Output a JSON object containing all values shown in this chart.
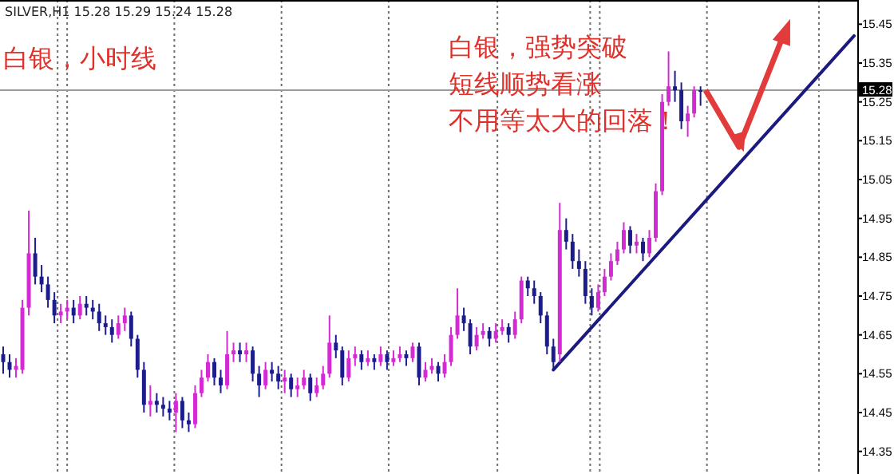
{
  "chart_data": {
    "type": "candlestick",
    "title": "白银，小时线",
    "subtitle": "SILVER,H1  15.28 15.29 15.24 15.28",
    "annotations": [
      "白银，强势突破",
      "短线顺势看涨",
      "不用等太大的回落！"
    ],
    "categories": [
      null,
      null,
      null,
      null,
      null,
      null,
      null,
      null,
      null,
      null,
      null,
      null,
      null,
      null,
      null,
      null,
      null,
      null,
      null,
      null,
      null,
      null,
      null,
      null,
      null,
      null,
      null,
      null,
      null,
      null,
      null,
      null,
      null,
      null,
      null,
      null,
      null,
      null,
      null,
      null,
      null,
      null,
      null,
      null,
      null,
      null,
      null,
      null,
      null,
      null,
      null,
      null,
      null,
      null,
      null,
      null,
      null,
      null,
      null,
      null,
      null,
      null,
      null,
      null,
      null,
      null,
      null,
      null,
      null,
      null,
      null,
      null,
      null,
      null,
      null,
      null,
      null,
      null,
      null,
      null,
      null,
      null,
      null,
      null,
      null,
      null,
      null,
      null,
      null,
      null,
      null,
      null,
      null,
      null,
      null,
      null,
      null,
      null,
      null,
      null,
      null,
      null,
      null,
      null,
      null,
      null,
      null,
      null,
      null,
      null,
      null,
      null,
      null,
      null,
      null,
      null,
      null,
      null,
      null,
      null,
      null,
      null,
      null,
      null,
      null,
      null,
      null,
      null,
      null,
      null,
      null,
      null,
      null,
      null
    ],
    "ohlc": [
      [
        14.6,
        14.62,
        14.55,
        14.58
      ],
      [
        14.58,
        14.6,
        14.54,
        14.56
      ],
      [
        14.56,
        14.59,
        14.54,
        14.57
      ],
      [
        14.56,
        14.74,
        14.55,
        14.72
      ],
      [
        14.72,
        14.97,
        14.7,
        14.86
      ],
      [
        14.86,
        14.9,
        14.78,
        14.8
      ],
      [
        14.8,
        14.83,
        14.76,
        14.78
      ],
      [
        14.78,
        14.8,
        14.72,
        14.74
      ],
      [
        14.74,
        14.76,
        14.68,
        14.7
      ],
      [
        14.7,
        14.73,
        14.68,
        14.71
      ],
      [
        14.71,
        14.74,
        14.69,
        14.72
      ],
      [
        14.72,
        14.74,
        14.68,
        14.7
      ],
      [
        14.7,
        14.75,
        14.69,
        14.73
      ],
      [
        14.73,
        14.75,
        14.7,
        14.72
      ],
      [
        14.72,
        14.74,
        14.69,
        14.71
      ],
      [
        14.71,
        14.73,
        14.66,
        14.68
      ],
      [
        14.68,
        14.7,
        14.65,
        14.67
      ],
      [
        14.67,
        14.69,
        14.63,
        14.65
      ],
      [
        14.65,
        14.7,
        14.64,
        14.68
      ],
      [
        14.68,
        14.72,
        14.66,
        14.7
      ],
      [
        14.7,
        14.71,
        14.62,
        14.64
      ],
      [
        14.64,
        14.65,
        14.54,
        14.56
      ],
      [
        14.56,
        14.58,
        14.45,
        14.47
      ],
      [
        14.47,
        14.52,
        14.44,
        14.48
      ],
      [
        14.48,
        14.5,
        14.45,
        14.47
      ],
      [
        14.47,
        14.49,
        14.44,
        14.46
      ],
      [
        14.46,
        14.48,
        14.43,
        14.45
      ],
      [
        14.45,
        14.5,
        14.4,
        14.48
      ],
      [
        14.48,
        14.49,
        14.41,
        14.43
      ],
      [
        14.43,
        14.45,
        14.4,
        14.42
      ],
      [
        14.42,
        14.52,
        14.41,
        14.5
      ],
      [
        14.5,
        14.56,
        14.49,
        14.54
      ],
      [
        14.54,
        14.6,
        14.53,
        14.58
      ],
      [
        14.58,
        14.59,
        14.52,
        14.54
      ],
      [
        14.54,
        14.56,
        14.5,
        14.52
      ],
      [
        14.52,
        14.66,
        14.51,
        14.6
      ],
      [
        14.6,
        14.63,
        14.58,
        14.61
      ],
      [
        14.61,
        14.63,
        14.58,
        14.6
      ],
      [
        14.6,
        14.63,
        14.58,
        14.61
      ],
      [
        14.61,
        14.62,
        14.53,
        14.55
      ],
      [
        14.55,
        14.57,
        14.49,
        14.52
      ],
      [
        14.52,
        14.58,
        14.51,
        14.56
      ],
      [
        14.56,
        14.58,
        14.53,
        14.55
      ],
      [
        14.55,
        14.57,
        14.51,
        14.53
      ],
      [
        14.53,
        14.56,
        14.5,
        14.54
      ],
      [
        14.54,
        14.55,
        14.49,
        14.51
      ],
      [
        14.51,
        14.54,
        14.49,
        14.52
      ],
      [
        14.52,
        14.56,
        14.51,
        14.54
      ],
      [
        14.54,
        14.55,
        14.48,
        14.5
      ],
      [
        14.5,
        14.54,
        14.49,
        14.52
      ],
      [
        14.52,
        14.57,
        14.51,
        14.55
      ],
      [
        14.55,
        14.7,
        14.54,
        14.63
      ],
      [
        14.63,
        14.65,
        14.59,
        14.61
      ],
      [
        14.61,
        14.62,
        14.52,
        14.54
      ],
      [
        14.54,
        14.61,
        14.53,
        14.59
      ],
      [
        14.59,
        14.62,
        14.57,
        14.6
      ],
      [
        14.6,
        14.61,
        14.56,
        14.58
      ],
      [
        14.58,
        14.61,
        14.57,
        14.59
      ],
      [
        14.59,
        14.6,
        14.56,
        14.58
      ],
      [
        14.58,
        14.62,
        14.57,
        14.6
      ],
      [
        14.6,
        14.61,
        14.56,
        14.58
      ],
      [
        14.58,
        14.61,
        14.57,
        14.59
      ],
      [
        14.59,
        14.62,
        14.58,
        14.6
      ],
      [
        14.6,
        14.61,
        14.57,
        14.59
      ],
      [
        14.59,
        14.63,
        14.58,
        14.62
      ],
      [
        14.62,
        14.63,
        14.52,
        14.54
      ],
      [
        14.54,
        14.58,
        14.53,
        14.56
      ],
      [
        14.56,
        14.59,
        14.55,
        14.57
      ],
      [
        14.57,
        14.58,
        14.53,
        14.55
      ],
      [
        14.55,
        14.6,
        14.54,
        14.58
      ],
      [
        14.58,
        14.67,
        14.57,
        14.65
      ],
      [
        14.65,
        14.77,
        14.64,
        14.7
      ],
      [
        14.7,
        14.72,
        14.66,
        14.68
      ],
      [
        14.68,
        14.69,
        14.6,
        14.62
      ],
      [
        14.62,
        14.67,
        14.61,
        14.65
      ],
      [
        14.65,
        14.68,
        14.64,
        14.66
      ],
      [
        14.66,
        14.67,
        14.62,
        14.64
      ],
      [
        14.64,
        14.68,
        14.63,
        14.66
      ],
      [
        14.66,
        14.69,
        14.65,
        14.67
      ],
      [
        14.67,
        14.68,
        14.63,
        14.65
      ],
      [
        14.65,
        14.71,
        14.64,
        14.69
      ],
      [
        14.69,
        14.8,
        14.68,
        14.79
      ],
      [
        14.79,
        14.8,
        14.75,
        14.77
      ],
      [
        14.77,
        14.79,
        14.73,
        14.75
      ],
      [
        14.75,
        14.76,
        14.68,
        14.7
      ],
      [
        14.7,
        14.71,
        14.6,
        14.62
      ],
      [
        14.62,
        14.64,
        14.56,
        14.58
      ],
      [
        14.6,
        14.99,
        14.58,
        14.92
      ],
      [
        14.92,
        14.95,
        14.87,
        14.89
      ],
      [
        14.89,
        14.91,
        14.82,
        14.84
      ],
      [
        14.84,
        14.87,
        14.8,
        14.82
      ],
      [
        14.82,
        14.84,
        14.73,
        14.75
      ],
      [
        14.75,
        14.77,
        14.7,
        14.72
      ],
      [
        14.72,
        14.78,
        14.71,
        14.76
      ],
      [
        14.76,
        14.82,
        14.75,
        14.8
      ],
      [
        14.8,
        14.86,
        14.79,
        14.84
      ],
      [
        14.84,
        14.89,
        14.83,
        14.87
      ],
      [
        14.87,
        14.94,
        14.86,
        14.92
      ],
      [
        14.92,
        14.93,
        14.86,
        14.88
      ],
      [
        14.88,
        14.91,
        14.86,
        14.89
      ],
      [
        14.89,
        14.9,
        14.84,
        14.86
      ],
      [
        14.86,
        14.92,
        14.85,
        14.9
      ],
      [
        14.9,
        15.04,
        14.89,
        15.02
      ],
      [
        15.02,
        15.27,
        15.01,
        15.25
      ],
      [
        15.25,
        15.38,
        15.24,
        15.29
      ],
      [
        15.29,
        15.33,
        15.25,
        15.28
      ],
      [
        15.28,
        15.3,
        15.18,
        15.2
      ],
      [
        15.2,
        15.24,
        15.16,
        15.22
      ],
      [
        15.22,
        15.29,
        15.21,
        15.28
      ],
      [
        15.28,
        15.29,
        15.24,
        15.28
      ],
      null,
      null,
      null,
      null,
      null,
      null,
      null,
      null,
      null,
      null,
      null,
      null,
      null,
      null,
      null,
      null,
      null,
      null,
      null,
      null,
      null,
      null,
      null,
      null
    ],
    "colors": [
      "#1c1c8c",
      "#1c1c8c",
      "#d42ad4",
      "#d42ad4",
      "#d42ad4",
      "#1c1c8c",
      "#1c1c8c",
      "#1c1c8c",
      "#1c1c8c",
      "#d42ad4",
      "#d42ad4",
      "#1c1c8c",
      "#d42ad4",
      "#1c1c8c",
      "#1c1c8c",
      "#1c1c8c",
      "#1c1c8c",
      "#1c1c8c",
      "#d42ad4",
      "#d42ad4",
      "#1c1c8c",
      "#1c1c8c",
      "#1c1c8c",
      "#d42ad4",
      "#1c1c8c",
      "#1c1c8c",
      "#1c1c8c",
      "#d42ad4",
      "#1c1c8c",
      "#1c1c8c",
      "#d42ad4",
      "#d42ad4",
      "#d42ad4",
      "#1c1c8c",
      "#1c1c8c",
      "#d42ad4",
      "#d42ad4",
      "#1c1c8c",
      "#d42ad4",
      "#1c1c8c",
      "#1c1c8c",
      "#d42ad4",
      "#1c1c8c",
      "#1c1c8c",
      "#d42ad4",
      "#1c1c8c",
      "#d42ad4",
      "#d42ad4",
      "#1c1c8c",
      "#d42ad4",
      "#d42ad4",
      "#d42ad4",
      "#1c1c8c",
      "#1c1c8c",
      "#d42ad4",
      "#d42ad4",
      "#1c1c8c",
      "#d42ad4",
      "#1c1c8c",
      "#d42ad4",
      "#1c1c8c",
      "#d42ad4",
      "#d42ad4",
      "#1c1c8c",
      "#d42ad4",
      "#1c1c8c",
      "#d42ad4",
      "#d42ad4",
      "#1c1c8c",
      "#d42ad4",
      "#d42ad4",
      "#d42ad4",
      "#1c1c8c",
      "#1c1c8c",
      "#d42ad4",
      "#d42ad4",
      "#1c1c8c",
      "#d42ad4",
      "#d42ad4",
      "#1c1c8c",
      "#d42ad4",
      "#d42ad4",
      "#1c1c8c",
      "#1c1c8c",
      "#1c1c8c",
      "#1c1c8c",
      "#1c1c8c",
      "#d42ad4",
      "#1c1c8c",
      "#1c1c8c",
      "#1c1c8c",
      "#1c1c8c",
      "#1c1c8c",
      "#d42ad4",
      "#d42ad4",
      "#d42ad4",
      "#d42ad4",
      "#d42ad4",
      "#1c1c8c",
      "#d42ad4",
      "#1c1c8c",
      "#d42ad4",
      "#d42ad4",
      "#d42ad4",
      "#d42ad4",
      "#1c1c8c",
      "#1c1c8c",
      "#d42ad4",
      "#d42ad4",
      "#1c1c8c",
      null,
      null,
      null,
      null,
      null,
      null,
      null,
      null,
      null,
      null,
      null,
      null,
      null,
      null,
      null,
      null,
      null,
      null,
      null,
      null,
      null,
      null,
      null,
      null
    ],
    "series": [
      {
        "type": "line",
        "color": "#1a1a80",
        "values": [
          null,
          null,
          null,
          null,
          null,
          null,
          null,
          null,
          null,
          null,
          null,
          null,
          null,
          null,
          null,
          null,
          null,
          null,
          null,
          null,
          null,
          null,
          null,
          null,
          null,
          null,
          null,
          null,
          null,
          null,
          null,
          null,
          null,
          null,
          null,
          null,
          null,
          null,
          null,
          null,
          null,
          null,
          null,
          null,
          null,
          null,
          null,
          null,
          null,
          null,
          null,
          null,
          null,
          null,
          null,
          null,
          null,
          null,
          null,
          null,
          null,
          null,
          null,
          null,
          null,
          null,
          null,
          null,
          null,
          null,
          null,
          null,
          null,
          null,
          null,
          null,
          null,
          null,
          null,
          null,
          null,
          null,
          null,
          null,
          null,
          null,
          14.56,
          null,
          null,
          null,
          null,
          null,
          null,
          null,
          null,
          null,
          null,
          null,
          null,
          null,
          null,
          null,
          null,
          null,
          null,
          null,
          null,
          null,
          null,
          null,
          null,
          null,
          null,
          null,
          null,
          null,
          null,
          null,
          null,
          null,
          null,
          null,
          null,
          null,
          null,
          null,
          null,
          null,
          null,
          null,
          null,
          null,
          null,
          15.42
        ]
      }
    ],
    "ylim": [
      14.3,
      15.5
    ],
    "yticks": [
      14.35,
      14.45,
      14.55,
      14.65,
      14.75,
      14.85,
      14.95,
      15.05,
      15.15,
      15.25,
      15.35,
      15.45
    ],
    "ref_lines": [
      {
        "axis": "y",
        "value": 15.28,
        "label": "15.28",
        "color": "#9a9a9a",
        "line_style": "solid"
      }
    ],
    "tick_labels": "y"
  }
}
